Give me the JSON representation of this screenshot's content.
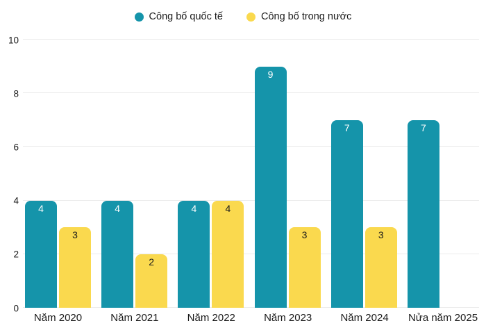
{
  "colors": {
    "international": "#1594aa",
    "domestic": "#fad94e",
    "text": "#1a1a1a",
    "gridline": "#ebebeb",
    "background": "#ffffff",
    "label_on_international": "#ffffff",
    "label_on_domestic": "#1a1a1a"
  },
  "legend": {
    "items": [
      {
        "label": "Công bố quốc tế",
        "color": "#1594aa",
        "icon": "circle-swatch-icon"
      },
      {
        "label": "Công bố trong nước",
        "color": "#fad94e",
        "icon": "circle-swatch-icon"
      }
    ]
  },
  "chart_data": {
    "type": "bar",
    "title": "",
    "xlabel": "",
    "ylabel": "",
    "categories": [
      "Năm 2020",
      "Năm 2021",
      "Năm 2022",
      "Năm 2023",
      "Năm 2024",
      "Nửa năm 2025"
    ],
    "series": [
      {
        "name": "Công bố quốc tế",
        "color": "#1594aa",
        "label_color": "#ffffff",
        "values": [
          4,
          4,
          4,
          9,
          7,
          7
        ]
      },
      {
        "name": "Công bố trong nước",
        "color": "#fad94e",
        "label_color": "#1a1a1a",
        "values": [
          3,
          2,
          4,
          3,
          3,
          null
        ]
      }
    ],
    "y_ticks": [
      0,
      2,
      4,
      6,
      8,
      10
    ],
    "ylim": [
      0,
      10
    ],
    "grid": true,
    "legend_position": "top",
    "bar_labels": true
  }
}
